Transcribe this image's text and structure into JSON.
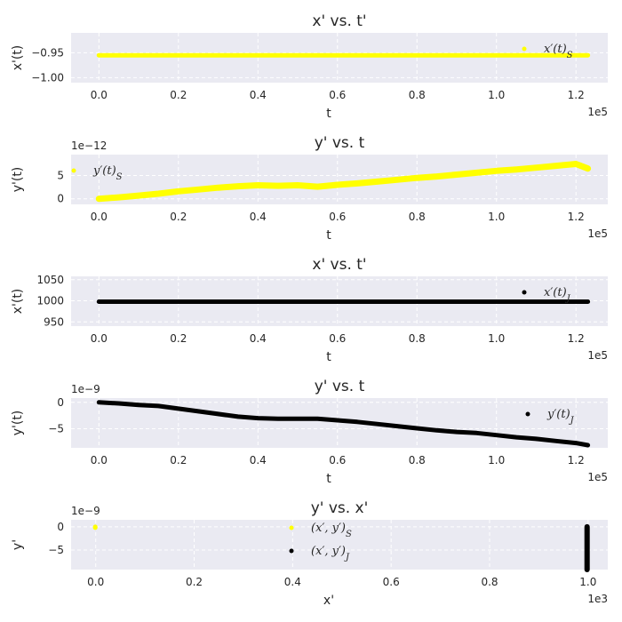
{
  "figure": {
    "charts": [
      {
        "id": "p1",
        "title": "x' vs. t'",
        "xlabel": "t",
        "ylabel": "x'(t)",
        "x_offset": "1e5",
        "y_offset": "",
        "x_ticks": [
          "0.0",
          "0.2",
          "0.4",
          "0.6",
          "0.8",
          "1.0",
          "1.2"
        ],
        "y_ticks": [
          "−0.95",
          "−1.00"
        ],
        "legend": {
          "position": "top-right",
          "entries": [
            "x′(t)S"
          ]
        }
      },
      {
        "id": "p2",
        "title": "y' vs. t",
        "xlabel": "t",
        "ylabel": "y'(t)",
        "x_offset": "1e5",
        "y_offset": "1e−12",
        "x_ticks": [
          "0.0",
          "0.2",
          "0.4",
          "0.6",
          "0.8",
          "1.0",
          "1.2"
        ],
        "y_ticks": [
          "5",
          "0"
        ],
        "legend": {
          "position": "top-left",
          "entries": [
            "y′(t)S"
          ]
        }
      },
      {
        "id": "p3",
        "title": "x' vs. t'",
        "xlabel": "t",
        "ylabel": "x'(t)",
        "x_offset": "1e5",
        "y_offset": "",
        "x_ticks": [
          "0.0",
          "0.2",
          "0.4",
          "0.6",
          "0.8",
          "1.0",
          "1.2"
        ],
        "y_ticks": [
          "1050",
          "1000",
          "950"
        ],
        "legend": {
          "position": "top-right",
          "entries": [
            "x′(t)J"
          ]
        }
      },
      {
        "id": "p4",
        "title": "y' vs. t",
        "xlabel": "t",
        "ylabel": "y'(t)",
        "x_offset": "1e5",
        "y_offset": "1e−9",
        "x_ticks": [
          "0.0",
          "0.2",
          "0.4",
          "0.6",
          "0.8",
          "1.0",
          "1.2"
        ],
        "y_ticks": [
          "0",
          "−5"
        ],
        "legend": {
          "position": "center-right",
          "entries": [
            "y′(t)J"
          ]
        }
      },
      {
        "id": "p5",
        "title": "y' vs. x'",
        "xlabel": "x'",
        "ylabel": "y'",
        "x_offset": "1e3",
        "y_offset": "1e−9",
        "x_ticks": [
          "0.0",
          "0.2",
          "0.4",
          "0.6",
          "0.8",
          "1.0"
        ],
        "y_ticks": [
          "0",
          "−5"
        ],
        "legend": {
          "position": "center",
          "entries": [
            "(x′, y′)S",
            "(x′, y′)J"
          ]
        }
      }
    ]
  },
  "colors": {
    "sun": "#ffff00",
    "jupiter": "#000000",
    "panel": "#eaeaf2"
  },
  "chart_data": [
    {
      "type": "scatter",
      "title": "x' vs. t'",
      "xlabel": "t",
      "ylabel": "x'(t)",
      "xlim": [
        -7000,
        128000
      ],
      "ylim": [
        -1.01,
        -0.91
      ],
      "y_tick_values": [
        -0.95,
        -1.0
      ],
      "x_tick_values": [
        0,
        20000,
        40000,
        60000,
        80000,
        100000,
        120000
      ],
      "legend": "top-right",
      "grid": true,
      "series": [
        {
          "name": "x′(t)S",
          "color": "#ffff00",
          "x": [
            0,
            20000,
            40000,
            60000,
            80000,
            100000,
            120000,
            123000
          ],
          "y": [
            -0.955,
            -0.955,
            -0.955,
            -0.955,
            -0.955,
            -0.955,
            -0.955,
            -0.955
          ]
        }
      ]
    },
    {
      "type": "scatter",
      "title": "y' vs. t",
      "xlabel": "t",
      "ylabel": "y'(t)",
      "xlim": [
        -7000,
        128000
      ],
      "ylim": [
        -1.2,
        9.5
      ],
      "y_tick_values": [
        5,
        0
      ],
      "x_tick_values": [
        0,
        20000,
        40000,
        60000,
        80000,
        100000,
        120000
      ],
      "legend": "top-left",
      "grid": true,
      "series": [
        {
          "name": "y′(t)S",
          "color": "#ffff00",
          "x": [
            0,
            5000,
            10000,
            15000,
            20000,
            25000,
            30000,
            35000,
            40000,
            45000,
            50000,
            55000,
            60000,
            65000,
            70000,
            75000,
            80000,
            85000,
            90000,
            95000,
            100000,
            105000,
            110000,
            115000,
            120000,
            123000
          ],
          "y": [
            0.0,
            0.3,
            0.7,
            1.1,
            1.6,
            2.0,
            2.4,
            2.7,
            2.9,
            2.8,
            2.9,
            2.6,
            3.0,
            3.3,
            3.7,
            4.1,
            4.5,
            4.8,
            5.2,
            5.6,
            6.0,
            6.3,
            6.7,
            7.1,
            7.5,
            6.5
          ]
        }
      ]
    },
    {
      "type": "scatter",
      "title": "x' vs. t'",
      "xlabel": "t",
      "ylabel": "x'(t)",
      "xlim": [
        -7000,
        128000
      ],
      "ylim": [
        940,
        1058
      ],
      "y_tick_values": [
        1050,
        1000,
        950
      ],
      "x_tick_values": [
        0,
        20000,
        40000,
        60000,
        80000,
        100000,
        120000
      ],
      "legend": "top-right",
      "grid": true,
      "series": [
        {
          "name": "x′(t)J",
          "color": "#000000",
          "x": [
            0,
            20000,
            40000,
            60000,
            80000,
            100000,
            120000,
            123000
          ],
          "y": [
            998,
            998,
            998,
            998,
            998,
            998,
            998,
            998
          ]
        }
      ]
    },
    {
      "type": "scatter",
      "title": "y' vs. t",
      "xlabel": "t",
      "ylabel": "y'(t)",
      "xlim": [
        -7000,
        128000
      ],
      "ylim": [
        -8.6,
        0.8
      ],
      "y_tick_values": [
        0,
        -5
      ],
      "x_tick_values": [
        0,
        20000,
        40000,
        60000,
        80000,
        100000,
        120000
      ],
      "legend": "center-right",
      "grid": true,
      "series": [
        {
          "name": "y′(t)J",
          "color": "#000000",
          "x": [
            0,
            5000,
            10000,
            15000,
            20000,
            25000,
            30000,
            35000,
            40000,
            45000,
            50000,
            55000,
            60000,
            65000,
            70000,
            75000,
            80000,
            85000,
            90000,
            95000,
            100000,
            105000,
            110000,
            115000,
            120000,
            123000
          ],
          "y": [
            0.0,
            -0.2,
            -0.5,
            -0.7,
            -1.2,
            -1.7,
            -2.2,
            -2.7,
            -3.0,
            -3.1,
            -3.1,
            -3.1,
            -3.4,
            -3.7,
            -4.1,
            -4.5,
            -4.9,
            -5.3,
            -5.6,
            -5.8,
            -6.2,
            -6.6,
            -6.9,
            -7.3,
            -7.7,
            -8.1
          ]
        }
      ]
    },
    {
      "type": "scatter",
      "title": "y' vs. x'",
      "xlabel": "x'",
      "ylabel": "y'",
      "xlim": [
        -50,
        1040
      ],
      "ylim": [
        -9.2,
        1.5
      ],
      "y_tick_values": [
        0,
        -5
      ],
      "x_tick_values": [
        0,
        200,
        400,
        600,
        800,
        1000
      ],
      "legend": "center",
      "grid": true,
      "series": [
        {
          "name": "(x′, y′)S",
          "color": "#ffff00",
          "x": [
            -0.96,
            -0.955,
            -0.95
          ],
          "y": [
            0.0,
            -0.1,
            -0.2
          ]
        },
        {
          "name": "(x′, y′)J",
          "color": "#000000",
          "x": [
            998,
            998,
            998,
            998,
            998,
            998,
            998,
            998,
            998,
            998,
            998
          ],
          "y": [
            0.0,
            -0.9,
            -1.8,
            -2.7,
            -3.6,
            -4.5,
            -5.4,
            -6.3,
            -7.2,
            -8.1,
            -9.2
          ]
        }
      ]
    }
  ]
}
